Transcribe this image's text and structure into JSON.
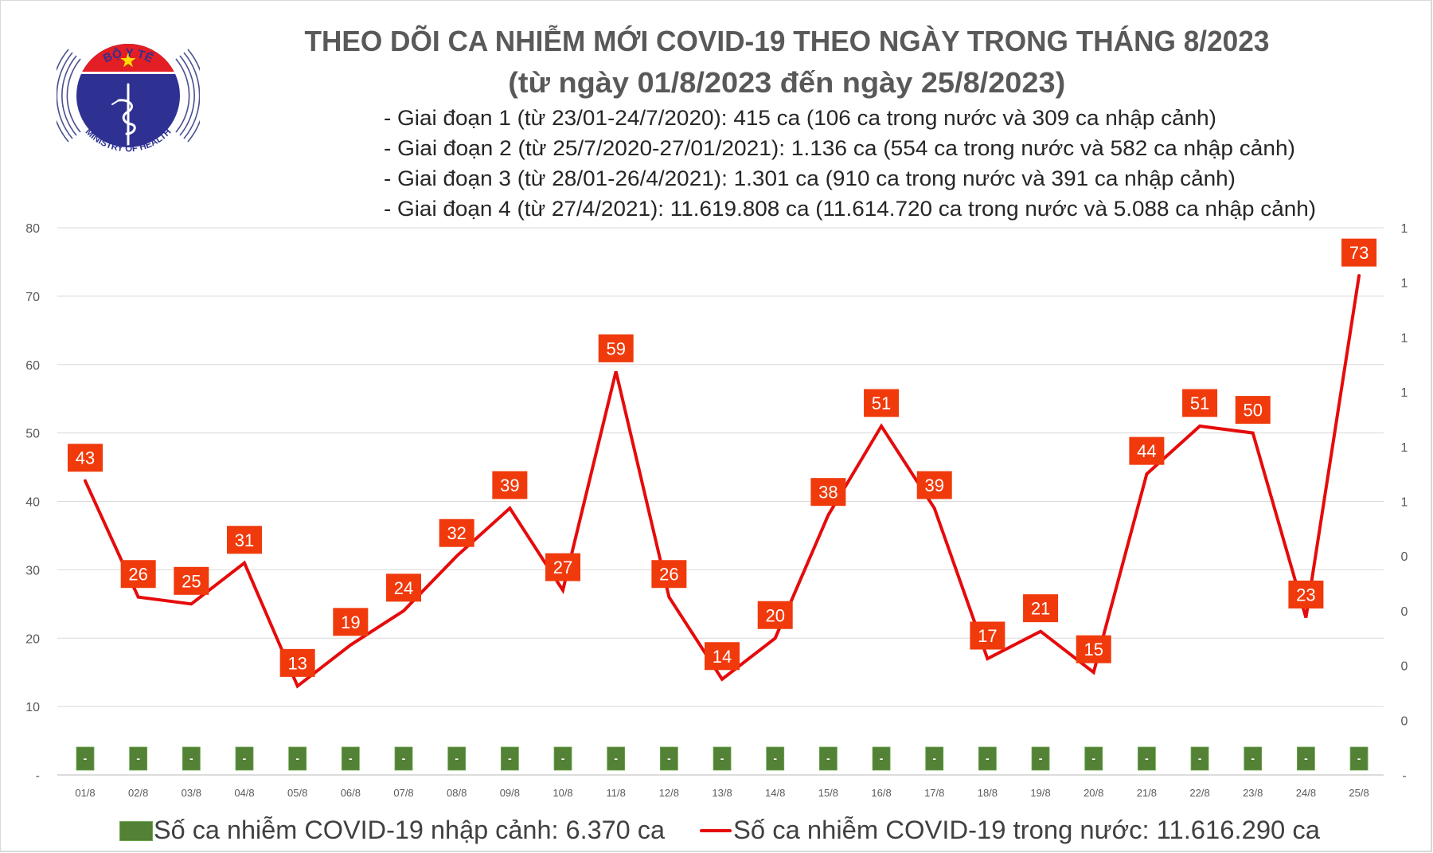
{
  "header": {
    "title_line1": "THEO DÕI CA NHIỄM MỚI COVID-19 THEO NGÀY TRONG THÁNG 8/2023",
    "title_line2": "(từ ngày 01/8/2023 đến ngày 25/8/2023)",
    "phases": [
      "- Giai đoạn 1 (từ 23/01-24/7/2020): 415 ca (106 ca trong nước và 309 ca nhập cảnh)",
      "- Giai đoạn 2 (từ 25/7/2020-27/01/2021): 1.136 ca (554 ca trong nước và 582 ca nhập cảnh)",
      "- Giai đoạn 3 (từ 28/01-26/4/2021): 1.301 ca (910 ca trong nước và 391 ca nhập cảnh)",
      "- Giai đoạn 4 (từ 27/4/2021): 11.619.808 ca (11.614.720 ca trong nước và 5.088 ca nhập cảnh)"
    ]
  },
  "logo": {
    "top_text": "BỘ Y TẾ",
    "bottom_text": "MINISTRY OF HEALTH",
    "colors": {
      "blue": "#2e3192",
      "red": "#e31e24",
      "star": "#ffde00"
    }
  },
  "chart_data": {
    "type": "line",
    "title": "THEO DÕI CA NHIỄM MỚI COVID-19 THEO NGÀY TRONG THÁNG 8/2023",
    "subtitle": "(từ ngày 01/8/2023 đến ngày 25/8/2023)",
    "xlabel": "",
    "ylabel": "",
    "categories": [
      "01/8",
      "02/8",
      "03/8",
      "04/8",
      "05/8",
      "06/8",
      "07/8",
      "08/8",
      "09/8",
      "10/8",
      "11/8",
      "12/8",
      "13/8",
      "14/8",
      "15/8",
      "16/8",
      "17/8",
      "18/8",
      "19/8",
      "20/8",
      "21/8",
      "22/8",
      "23/8",
      "24/8",
      "25/8"
    ],
    "series": [
      {
        "name": "Số ca nhiễm COVID-19 trong nước: 11.616.290 ca",
        "type": "line",
        "axis": "left",
        "color": "#e60b0b",
        "label_color": "#f03a0c",
        "values": [
          43,
          26,
          25,
          31,
          13,
          19,
          24,
          32,
          39,
          27,
          59,
          26,
          14,
          20,
          38,
          51,
          39,
          17,
          21,
          15,
          44,
          51,
          50,
          23,
          73
        ],
        "data_labels": [
          "43",
          "26",
          "25",
          "31",
          "13",
          "19",
          "24",
          "32",
          "39",
          "27",
          "59",
          "26",
          "14",
          "20",
          "38",
          "51",
          "39",
          "17",
          "21",
          "15",
          "44",
          "51",
          "50",
          "23",
          "73"
        ]
      },
      {
        "name": "Số ca nhiễm COVID-19 nhập cảnh: 6.370 ca",
        "type": "bar",
        "axis": "right",
        "color": "#538135",
        "values": [
          0,
          0,
          0,
          0,
          0,
          0,
          0,
          0,
          0,
          0,
          0,
          0,
          0,
          0,
          0,
          0,
          0,
          0,
          0,
          0,
          0,
          0,
          0,
          0,
          0
        ],
        "data_labels": [
          "-",
          "-",
          "-",
          "-",
          "-",
          "-",
          "-",
          "-",
          "-",
          "-",
          "-",
          "-",
          "-",
          "-",
          "-",
          "-",
          "-",
          "-",
          "-",
          "-",
          "-",
          "-",
          "-",
          "-",
          "-"
        ]
      }
    ],
    "y_left": {
      "ylim": [
        0,
        80
      ],
      "ticks": [
        0,
        10,
        20,
        30,
        40,
        50,
        60,
        70,
        80
      ],
      "tick_labels": [
        "-",
        "10",
        "20",
        "30",
        "40",
        "50",
        "60",
        "70",
        "80"
      ]
    },
    "y_right": {
      "tick_labels": [
        "-",
        "0",
        "0",
        "0",
        "0",
        "1",
        "1",
        "1",
        "1",
        "1",
        "1"
      ]
    },
    "grid": true,
    "grid_color": "#d9d9d9",
    "legend": {
      "position": "bottom",
      "entries": [
        {
          "label": "Số ca nhiễm COVID-19 nhập cảnh: 6.370 ca",
          "marker": "square",
          "color": "#538135"
        },
        {
          "label": "Số ca nhiễm COVID-19 trong nước: 11.616.290 ca",
          "marker": "line",
          "color": "#e60b0b"
        }
      ]
    }
  }
}
